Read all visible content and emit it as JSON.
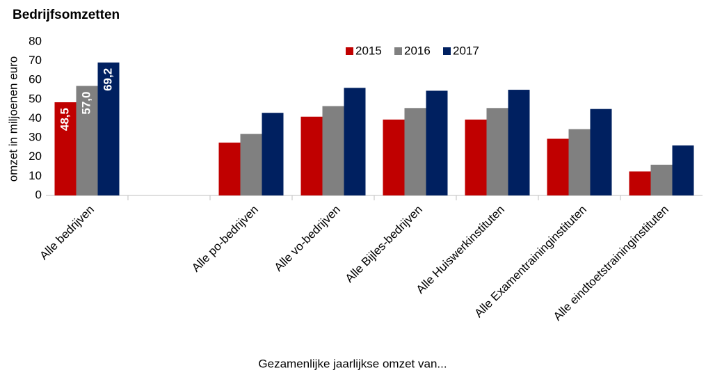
{
  "chart_data": {
    "type": "bar",
    "title": "Bedrijfsomzetten",
    "y_label": "omzet in miljoenen euro",
    "x_label": "Gezamenlijke jaarlijkse omzet van...",
    "categories": [
      "Alle bedrijven",
      null,
      "Alle po-bedrijven",
      "Alle vo-bedrijven",
      "Alle Bijles-bedrijven",
      "Alle Huiswerkinstituten",
      "Alle Examentraininginstituten",
      "Alle eindtoetstraininginstituten"
    ],
    "series": [
      {
        "name": "2015",
        "color": "#c00000",
        "values": [
          48.5,
          null,
          27.5,
          41,
          39.5,
          39.5,
          29.5,
          12.5
        ],
        "value_labels": [
          "48,5",
          null,
          null,
          null,
          null,
          null,
          null,
          null
        ]
      },
      {
        "name": "2016",
        "color": "#808080",
        "values": [
          57.0,
          null,
          32,
          46.5,
          45.5,
          45.5,
          34.5,
          16
        ],
        "value_labels": [
          "57,0",
          null,
          null,
          null,
          null,
          null,
          null,
          null
        ]
      },
      {
        "name": "2017",
        "color": "#002060",
        "values": [
          69.2,
          null,
          43,
          56,
          54.5,
          55,
          45,
          26
        ],
        "value_labels": [
          "69,2",
          null,
          null,
          null,
          null,
          null,
          null,
          null
        ]
      }
    ],
    "ylim": [
      0,
      80
    ],
    "yticks": [
      0,
      10,
      20,
      30,
      40,
      50,
      60,
      70,
      80
    ],
    "grid": false,
    "legend": "top"
  }
}
